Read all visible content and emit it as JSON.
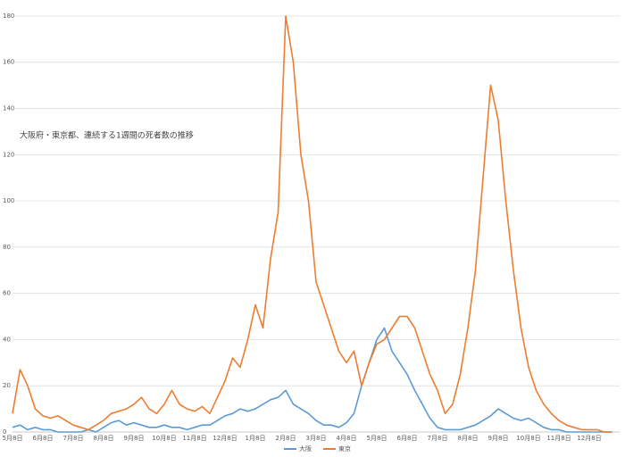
{
  "chart_data": {
    "type": "line",
    "title": "大阪府・東京都、連続する1週間の死者数の推移",
    "categories": [
      "5月8日",
      null,
      null,
      null,
      "6月8日",
      null,
      null,
      null,
      "7月8日",
      null,
      null,
      null,
      "8月8日",
      null,
      null,
      null,
      "9月8日",
      null,
      null,
      null,
      "10月8日",
      null,
      null,
      null,
      "11月8日",
      null,
      null,
      null,
      "12月8日",
      null,
      null,
      null,
      "1月8日",
      null,
      null,
      null,
      "2月8日",
      null,
      null,
      null,
      "3月8日",
      null,
      null,
      null,
      "4月8日",
      null,
      null,
      null,
      "5月8日",
      null,
      null,
      null,
      "6月8日",
      null,
      null,
      null,
      "7月8日",
      null,
      null,
      null,
      "8月8日",
      null,
      null,
      null,
      "9月8日",
      null,
      null,
      null,
      "10月8日",
      null,
      null,
      null,
      "11月8日",
      null,
      null,
      null,
      "12月8日",
      null,
      null,
      null
    ],
    "series": [
      {
        "name": "大阪",
        "color": "#5b9bd5",
        "values": [
          2,
          3,
          1,
          2,
          1,
          1,
          0,
          0,
          0,
          0,
          1,
          0,
          2,
          4,
          5,
          3,
          4,
          3,
          2,
          2,
          3,
          2,
          2,
          1,
          2,
          3,
          3,
          5,
          7,
          8,
          10,
          9,
          10,
          12,
          14,
          15,
          18,
          12,
          10,
          8,
          5,
          3,
          3,
          2,
          4,
          8,
          20,
          30,
          40,
          45,
          35,
          30,
          25,
          18,
          12,
          6,
          2,
          1,
          1,
          1,
          2,
          3,
          5,
          7,
          10,
          8,
          6,
          5,
          6,
          4,
          2,
          1,
          1,
          0,
          0,
          0,
          0,
          0,
          0,
          0
        ]
      },
      {
        "name": "東京",
        "color": "#ed7d31",
        "values": [
          8,
          27,
          20,
          10,
          7,
          6,
          7,
          5,
          3,
          2,
          1,
          3,
          5,
          8,
          9,
          10,
          12,
          15,
          10,
          8,
          12,
          18,
          12,
          10,
          9,
          11,
          8,
          15,
          22,
          32,
          28,
          40,
          55,
          45,
          75,
          95,
          180,
          160,
          120,
          100,
          65,
          55,
          45,
          35,
          30,
          35,
          20,
          30,
          38,
          40,
          45,
          50,
          50,
          45,
          35,
          25,
          18,
          8,
          12,
          25,
          45,
          70,
          110,
          150,
          135,
          100,
          70,
          45,
          28,
          18,
          12,
          8,
          5,
          3,
          2,
          1,
          1,
          1,
          0,
          0
        ]
      }
    ],
    "ylim": [
      0,
      185
    ],
    "yticks": [
      0,
      20,
      40,
      60,
      80,
      100,
      120,
      140,
      160,
      180
    ],
    "grid": true
  }
}
